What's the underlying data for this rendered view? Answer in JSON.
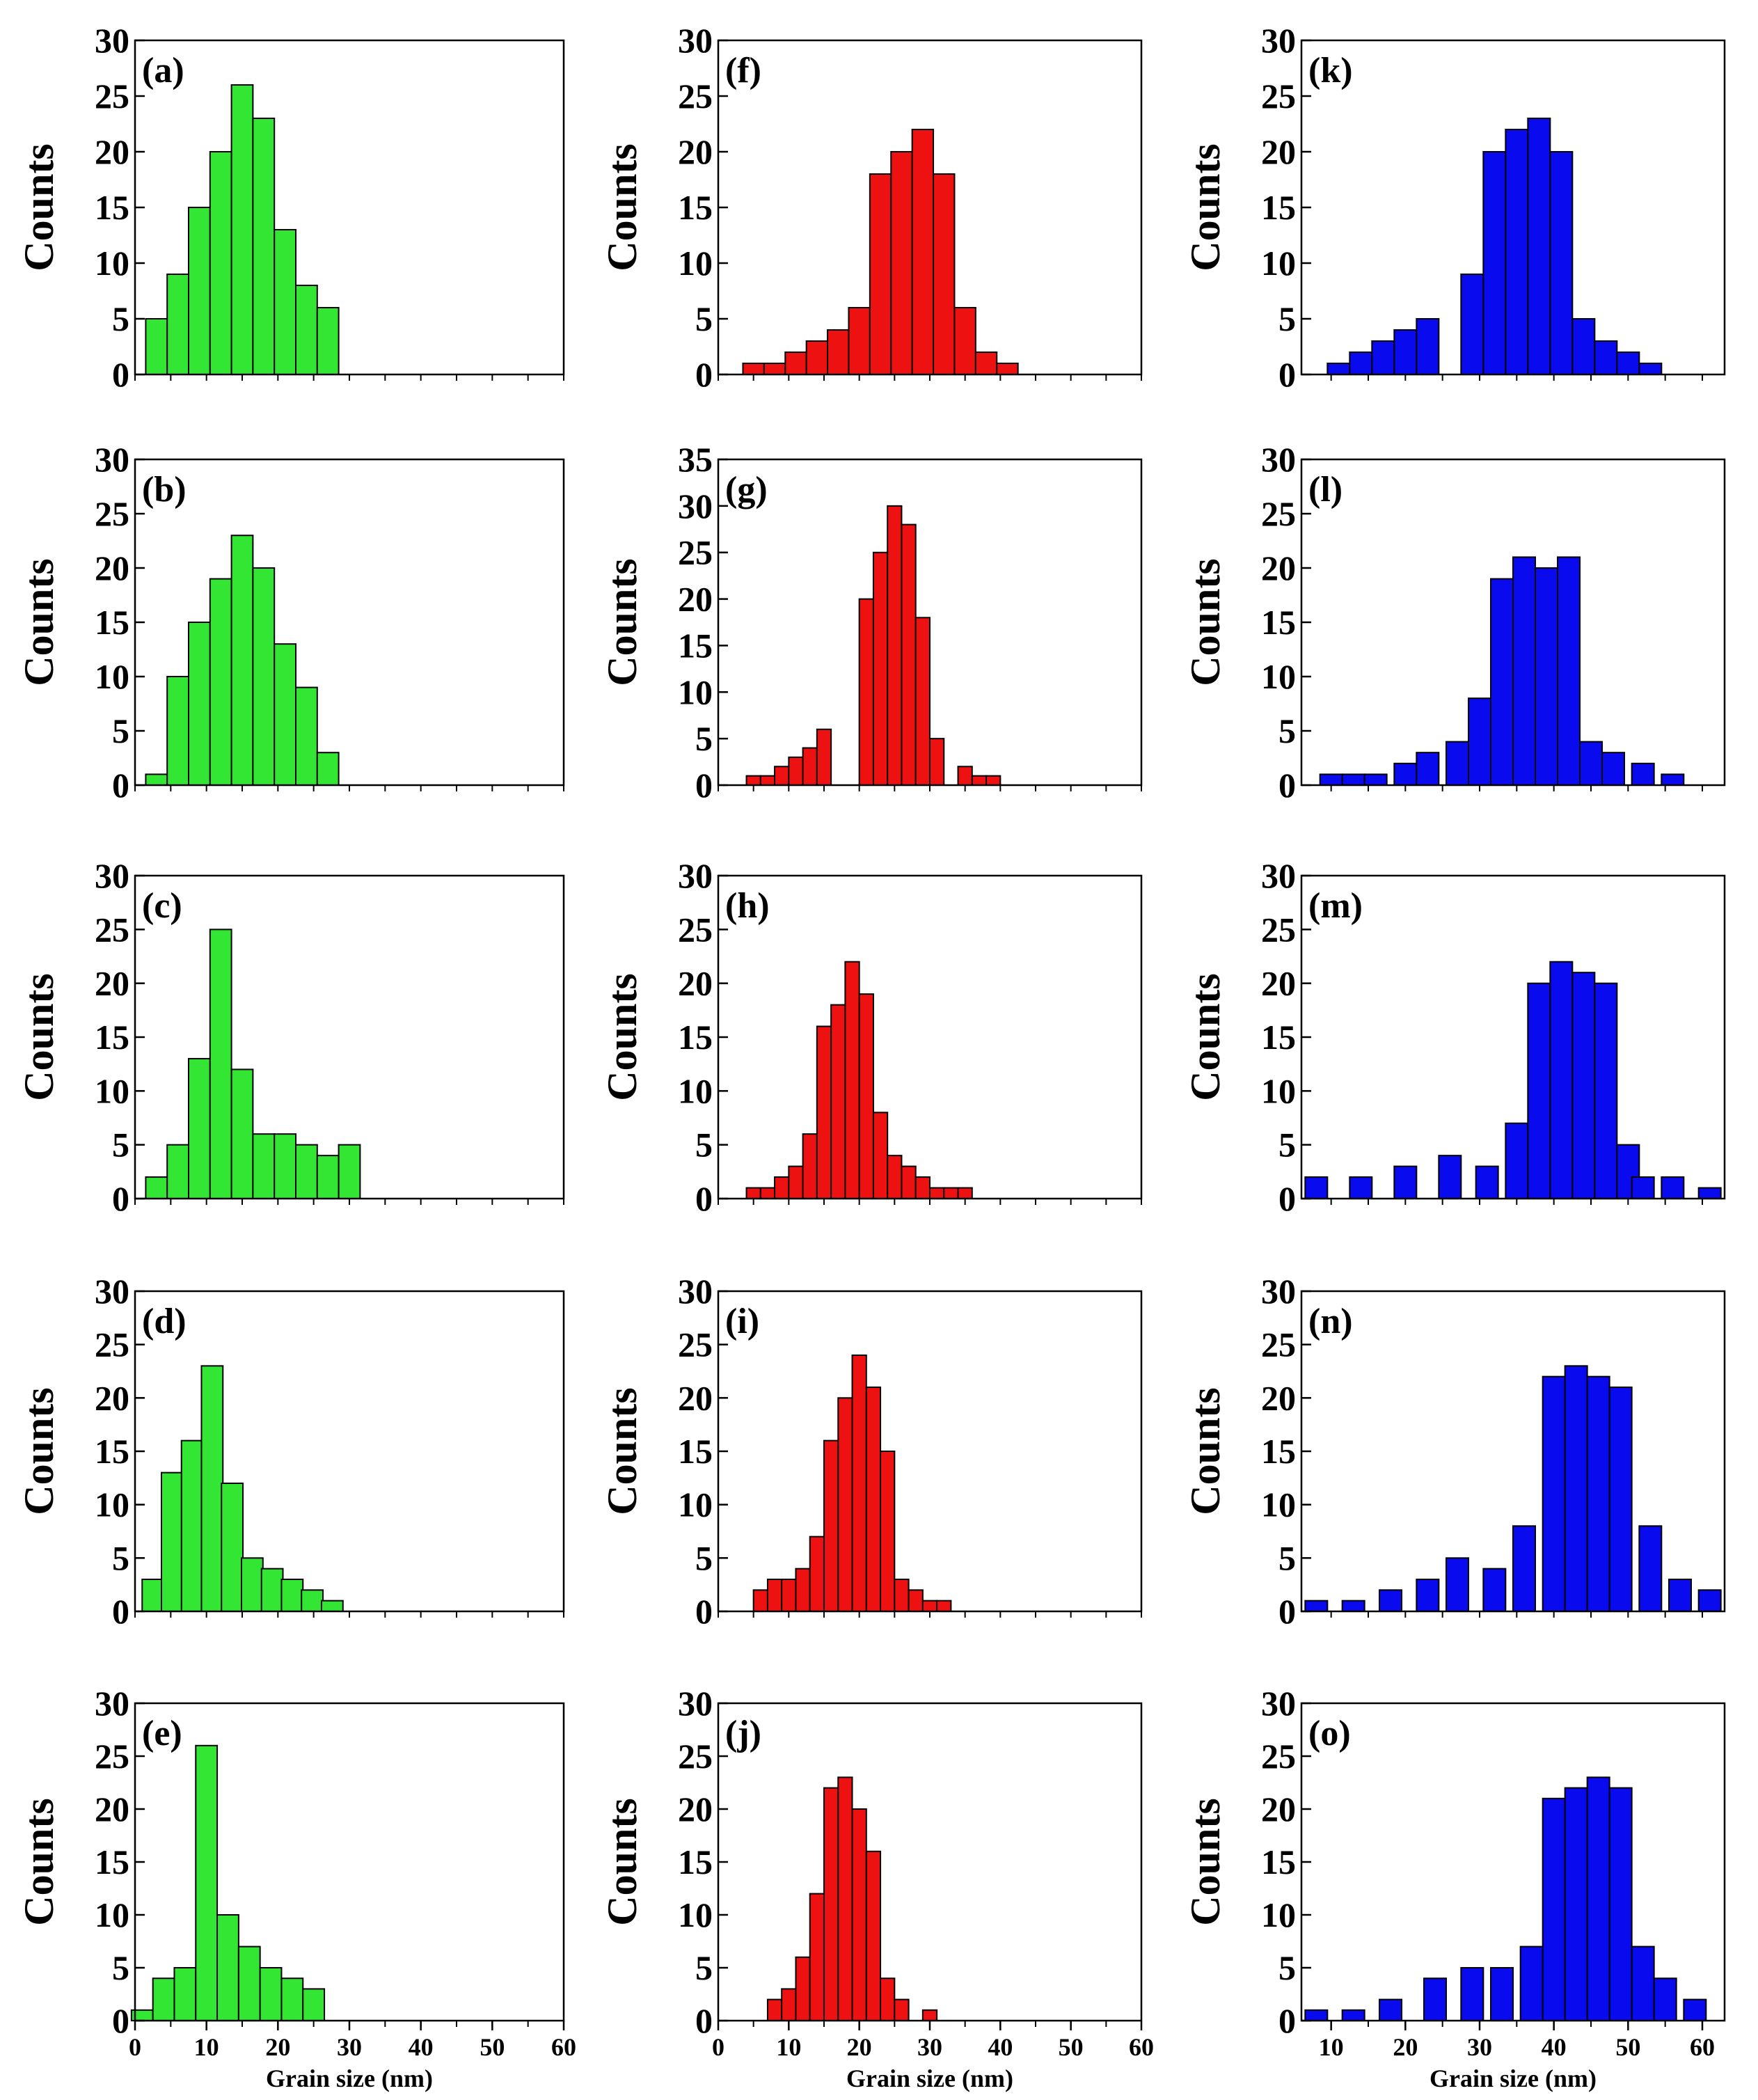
{
  "figure": {
    "count_label": "Counts",
    "x_axis_label": "Grain size (nm)"
  },
  "colors": {
    "green": "#33E633",
    "red": "#EE1111",
    "blue": "#0A0AEE",
    "edge": "#000000"
  },
  "chart_data": [
    {
      "id": "a",
      "label": "(a)",
      "type": "bar",
      "color": "green",
      "xlim": [
        0,
        60
      ],
      "ylim": [
        0,
        30
      ],
      "yticks": [
        0,
        5,
        10,
        15,
        20,
        25,
        30
      ],
      "xticks": [],
      "xlabel": "",
      "ylabel": "Counts",
      "bin_width": 3,
      "x": [
        3,
        6,
        9,
        12,
        15,
        18,
        21,
        24,
        27
      ],
      "values": [
        5,
        9,
        15,
        20,
        26,
        23,
        13,
        8,
        6
      ]
    },
    {
      "id": "b",
      "label": "(b)",
      "type": "bar",
      "color": "green",
      "xlim": [
        0,
        60
      ],
      "ylim": [
        0,
        30
      ],
      "yticks": [
        0,
        5,
        10,
        15,
        20,
        25,
        30
      ],
      "xticks": [],
      "xlabel": "",
      "ylabel": "Counts",
      "bin_width": 3,
      "x": [
        3,
        6,
        9,
        12,
        15,
        18,
        21,
        24,
        27
      ],
      "values": [
        1,
        10,
        15,
        19,
        23,
        20,
        13,
        9,
        3
      ]
    },
    {
      "id": "c",
      "label": "(c)",
      "type": "bar",
      "color": "green",
      "xlim": [
        0,
        60
      ],
      "ylim": [
        0,
        30
      ],
      "yticks": [
        0,
        5,
        10,
        15,
        20,
        25,
        30
      ],
      "xticks": [],
      "xlabel": "",
      "ylabel": "Counts",
      "bin_width": 3,
      "x": [
        3,
        6,
        9,
        12,
        15,
        18,
        21,
        24,
        27,
        30
      ],
      "values": [
        2,
        5,
        13,
        25,
        12,
        6,
        6,
        5,
        4,
        5
      ]
    },
    {
      "id": "d",
      "label": "(d)",
      "type": "bar",
      "color": "green",
      "xlim": [
        0,
        60
      ],
      "ylim": [
        0,
        30
      ],
      "yticks": [
        0,
        5,
        10,
        15,
        20,
        25,
        30
      ],
      "xticks": [],
      "xlabel": "",
      "ylabel": "Counts",
      "bin_width": 3,
      "x": [
        2.5,
        5.2,
        8,
        10.8,
        13.6,
        16.4,
        19.2,
        22,
        24.8,
        27.6
      ],
      "values": [
        3,
        13,
        16,
        23,
        12,
        5,
        4,
        3,
        2,
        1
      ]
    },
    {
      "id": "e",
      "label": "(e)",
      "type": "bar",
      "color": "green",
      "xlim": [
        0,
        60
      ],
      "ylim": [
        0,
        30
      ],
      "yticks": [
        0,
        5,
        10,
        15,
        20,
        25,
        30
      ],
      "xticks": [
        0,
        10,
        20,
        30,
        40,
        50,
        60
      ],
      "xlabel": "Grain size (nm)",
      "ylabel": "Counts",
      "bin_width": 3,
      "x": [
        1,
        4,
        7,
        10,
        13,
        16,
        19,
        22,
        25
      ],
      "values": [
        1,
        4,
        5,
        26,
        10,
        7,
        5,
        4,
        3
      ]
    },
    {
      "id": "f",
      "label": "(f)",
      "type": "bar",
      "color": "red",
      "xlim": [
        0,
        60
      ],
      "ylim": [
        0,
        30
      ],
      "yticks": [
        0,
        5,
        10,
        15,
        20,
        25,
        30
      ],
      "xticks": [],
      "xlabel": "",
      "ylabel": "Counts",
      "bin_width": 3,
      "x": [
        5,
        8,
        11,
        14,
        17,
        20,
        23,
        26,
        29,
        32,
        35,
        38,
        41,
        44
      ],
      "values": [
        1,
        1,
        2,
        3,
        4,
        6,
        18,
        20,
        22,
        18,
        6,
        2,
        1,
        0
      ]
    },
    {
      "id": "g",
      "label": "(g)",
      "type": "bar",
      "color": "red",
      "xlim": [
        0,
        60
      ],
      "ylim": [
        0,
        35
      ],
      "yticks": [
        0,
        5,
        10,
        15,
        20,
        25,
        30,
        35
      ],
      "xticks": [],
      "xlabel": "",
      "ylabel": "Counts",
      "bin_width": 2,
      "x": [
        5,
        7,
        9,
        11,
        13,
        15,
        21,
        23,
        25,
        27,
        29,
        31,
        35,
        37,
        39
      ],
      "values": [
        1,
        1,
        2,
        3,
        4,
        6,
        20,
        25,
        30,
        28,
        18,
        5,
        2,
        1,
        1
      ]
    },
    {
      "id": "h",
      "label": "(h)",
      "type": "bar",
      "color": "red",
      "xlim": [
        0,
        60
      ],
      "ylim": [
        0,
        30
      ],
      "yticks": [
        0,
        5,
        10,
        15,
        20,
        25,
        30
      ],
      "xticks": [],
      "xlabel": "",
      "ylabel": "Counts",
      "bin_width": 2,
      "x": [
        5,
        7,
        9,
        11,
        13,
        15,
        17,
        19,
        21,
        23,
        25,
        27,
        29,
        31,
        33,
        35,
        37
      ],
      "values": [
        1,
        1,
        2,
        3,
        6,
        16,
        18,
        22,
        19,
        8,
        4,
        3,
        2,
        1,
        1,
        1,
        0
      ]
    },
    {
      "id": "i",
      "label": "(i)",
      "type": "bar",
      "color": "red",
      "xlim": [
        0,
        60
      ],
      "ylim": [
        0,
        30
      ],
      "yticks": [
        0,
        5,
        10,
        15,
        20,
        25,
        30
      ],
      "xticks": [],
      "xlabel": "",
      "ylabel": "Counts",
      "bin_width": 2,
      "x": [
        6,
        8,
        10,
        12,
        14,
        16,
        18,
        20,
        22,
        24,
        26,
        28,
        30,
        32
      ],
      "values": [
        2,
        3,
        3,
        4,
        7,
        16,
        20,
        24,
        21,
        15,
        3,
        2,
        1,
        1
      ]
    },
    {
      "id": "j",
      "label": "(j)",
      "type": "bar",
      "color": "red",
      "xlim": [
        0,
        60
      ],
      "ylim": [
        0,
        30
      ],
      "yticks": [
        0,
        5,
        10,
        15,
        20,
        25,
        30
      ],
      "xticks": [
        0,
        10,
        20,
        30,
        40,
        50,
        60
      ],
      "xlabel": "Grain size (nm)",
      "ylabel": "Counts",
      "bin_width": 2,
      "x": [
        8,
        10,
        12,
        14,
        16,
        18,
        20,
        22,
        24,
        26,
        28,
        30
      ],
      "values": [
        2,
        3,
        6,
        12,
        22,
        23,
        20,
        16,
        4,
        2,
        0,
        1
      ]
    },
    {
      "id": "k",
      "label": "(k)",
      "type": "bar",
      "color": "blue",
      "xlim": [
        6,
        63
      ],
      "ylim": [
        0,
        30
      ],
      "yticks": [
        0,
        5,
        10,
        15,
        20,
        25,
        30
      ],
      "xticks": [],
      "xlabel": "",
      "ylabel": "Counts",
      "bin_width": 3,
      "x": [
        11,
        14,
        17,
        20,
        23,
        26,
        29,
        32,
        35,
        38,
        41,
        44,
        47,
        50,
        53,
        56,
        59
      ],
      "values": [
        1,
        2,
        3,
        4,
        5,
        0,
        9,
        20,
        22,
        23,
        20,
        5,
        3,
        2,
        1,
        0,
        0
      ]
    },
    {
      "id": "l",
      "label": "(l)",
      "type": "bar",
      "color": "blue",
      "xlim": [
        6,
        63
      ],
      "ylim": [
        0,
        30
      ],
      "yticks": [
        0,
        5,
        10,
        15,
        20,
        25,
        30
      ],
      "xticks": [],
      "xlabel": "",
      "ylabel": "Counts",
      "bin_width": 3,
      "x": [
        10,
        13,
        16,
        20,
        23,
        27,
        30,
        33,
        36,
        39,
        42,
        45,
        48,
        52,
        56
      ],
      "values": [
        1,
        1,
        1,
        2,
        3,
        4,
        8,
        19,
        21,
        20,
        21,
        4,
        3,
        2,
        1
      ]
    },
    {
      "id": "m",
      "label": "(m)",
      "type": "bar",
      "color": "blue",
      "xlim": [
        6,
        63
      ],
      "ylim": [
        0,
        30
      ],
      "yticks": [
        0,
        5,
        10,
        15,
        20,
        25,
        30
      ],
      "xticks": [],
      "xlabel": "",
      "ylabel": "Counts",
      "bin_width": 3,
      "x": [
        8,
        14,
        20,
        26,
        31,
        35,
        38,
        41,
        44,
        47,
        50,
        52,
        56,
        61
      ],
      "values": [
        2,
        2,
        3,
        4,
        3,
        7,
        20,
        22,
        21,
        20,
        5,
        2,
        2,
        1
      ]
    },
    {
      "id": "n",
      "label": "(n)",
      "type": "bar",
      "color": "blue",
      "xlim": [
        6,
        63
      ],
      "ylim": [
        0,
        30
      ],
      "yticks": [
        0,
        5,
        10,
        15,
        20,
        25,
        30
      ],
      "xticks": [],
      "xlabel": "",
      "ylabel": "Counts",
      "bin_width": 3,
      "x": [
        8,
        13,
        18,
        23,
        27,
        32,
        36,
        40,
        43,
        46,
        49,
        53,
        57,
        61
      ],
      "values": [
        1,
        1,
        2,
        3,
        5,
        4,
        8,
        22,
        23,
        22,
        21,
        8,
        3,
        2
      ]
    },
    {
      "id": "o",
      "label": "(o)",
      "type": "bar",
      "color": "blue",
      "xlim": [
        6,
        63
      ],
      "ylim": [
        0,
        30
      ],
      "yticks": [
        0,
        5,
        10,
        15,
        20,
        25,
        30
      ],
      "xticks": [
        10,
        20,
        30,
        40,
        50,
        60
      ],
      "xlabel": "Grain size (nm)",
      "ylabel": "Counts",
      "bin_width": 3,
      "x": [
        8,
        13,
        18,
        24,
        29,
        33,
        37,
        40,
        43,
        46,
        49,
        52,
        55,
        59,
        62
      ],
      "values": [
        1,
        1,
        2,
        4,
        5,
        5,
        7,
        21,
        22,
        23,
        22,
        7,
        4,
        2,
        0
      ]
    }
  ]
}
